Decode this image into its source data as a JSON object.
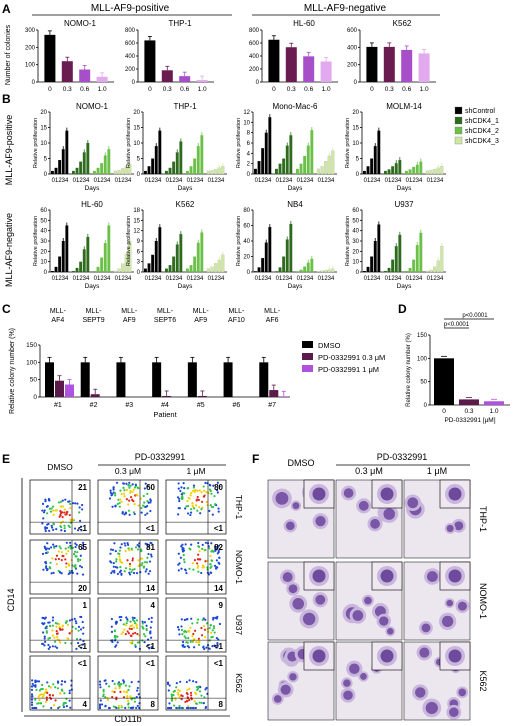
{
  "panel_letters": [
    "A",
    "B",
    "C",
    "D",
    "E",
    "F"
  ],
  "panel_a": {
    "group_labels": [
      "MLL-AF9-positive",
      "MLL-AF9-negative"
    ],
    "ylabel": "Number of colonies",
    "x_ticks": [
      "0",
      "0.3",
      "0.6",
      "1.0"
    ],
    "charts": [
      {
        "title": "NOMO-1",
        "ylim": [
          0,
          300
        ],
        "yticks": [
          "0",
          "100",
          "200",
          "300"
        ],
        "values": [
          272,
          120,
          72,
          30
        ],
        "colors": [
          "#000000",
          "#6a1b4f",
          "#a64fc9",
          "#e2a9ef"
        ]
      },
      {
        "title": "THP-1",
        "ylim": [
          0,
          800
        ],
        "yticks": [
          "0",
          "200",
          "400",
          "600",
          "800"
        ],
        "values": [
          640,
          180,
          90,
          30
        ],
        "colors": [
          "#000000",
          "#6a1b4f",
          "#a64fc9",
          "#e2a9ef"
        ]
      },
      {
        "title": "HL-60",
        "ylim": [
          0,
          800
        ],
        "yticks": [
          "0",
          "200",
          "400",
          "600",
          "800"
        ],
        "values": [
          650,
          535,
          395,
          315
        ],
        "colors": [
          "#000000",
          "#6a1b4f",
          "#a64fc9",
          "#e2a9ef"
        ]
      },
      {
        "title": "K562",
        "ylim": [
          0,
          600
        ],
        "yticks": [
          "0",
          "200",
          "400",
          "600"
        ],
        "values": [
          405,
          405,
          370,
          330
        ],
        "colors": [
          "#000000",
          "#6a1b4f",
          "#a64fc9",
          "#e2a9ef"
        ]
      }
    ]
  },
  "panel_b": {
    "row_labels": [
      "MLL-AF9-positive",
      "MLL-AF9-negative"
    ],
    "ylabel": "Relative proliferation",
    "xlabel": "Days",
    "day_ticks": "01234",
    "legend": [
      {
        "label": "shControl",
        "color": "#000000"
      },
      {
        "label": "shCDK4_1",
        "color": "#2e6b1f"
      },
      {
        "label": "shCDK4_2",
        "color": "#6cc04a"
      },
      {
        "label": "shCDK4_3",
        "color": "#cfe6a4"
      }
    ],
    "charts": [
      {
        "title": "NOMO-1",
        "ymax": 20,
        "yticks": [
          "0",
          "5",
          "10",
          "15",
          "20"
        ],
        "series": [
          [
            1,
            2,
            4.5,
            8,
            14
          ],
          [
            1,
            2,
            4,
            7,
            10
          ],
          [
            1,
            2,
            3.5,
            6,
            8
          ],
          [
            1,
            1.2,
            1.8,
            2.4,
            3.2
          ]
        ]
      },
      {
        "title": "THP-1",
        "ymax": 20,
        "yticks": [
          "0",
          "5",
          "10",
          "15",
          "20"
        ],
        "series": [
          [
            1,
            2.5,
            5,
            9,
            14
          ],
          [
            1,
            2,
            4,
            7,
            10.5
          ],
          [
            1,
            2.5,
            5,
            9,
            12.5
          ],
          [
            1,
            1.2,
            1.5,
            2,
            2.5
          ]
        ]
      },
      {
        "title": "Mono-Mac-6",
        "ymax": 12,
        "yticks": [
          "0",
          "2",
          "4",
          "6",
          "8",
          "10",
          "12"
        ],
        "series": [
          [
            1,
            2.5,
            5,
            8,
            11
          ],
          [
            1,
            2,
            3,
            5.5,
            7.5
          ],
          [
            1,
            2,
            3.5,
            5.5,
            8.5
          ],
          [
            1,
            1.5,
            2.5,
            3.5,
            4.5
          ]
        ]
      },
      {
        "title": "MOLM-14",
        "ymax": 20,
        "yticks": [
          "0",
          "5",
          "10",
          "15",
          "20"
        ],
        "series": [
          [
            1,
            2.5,
            5,
            9,
            14
          ],
          [
            1,
            1.5,
            2.5,
            3.5,
            4.5
          ],
          [
            1,
            1.5,
            2.3,
            3,
            4
          ],
          [
            1,
            1.3,
            1.6,
            2,
            2.5
          ]
        ]
      },
      {
        "title": "HL-60",
        "ymax": 60,
        "yticks": [
          "0",
          "10",
          "20",
          "30",
          "40",
          "50",
          "60"
        ],
        "series": [
          [
            1,
            5,
            15,
            30,
            45
          ],
          [
            1,
            4,
            10,
            22,
            34
          ],
          [
            1,
            5,
            14,
            28,
            45
          ],
          [
            1,
            3,
            8,
            17,
            30
          ]
        ]
      },
      {
        "title": "K562",
        "ymax": 18,
        "yticks": [
          "0",
          "3",
          "6",
          "9",
          "12",
          "15",
          "18"
        ],
        "series": [
          [
            1,
            2.5,
            5,
            9,
            13
          ],
          [
            1,
            2,
            4.5,
            8,
            11
          ],
          [
            1,
            2,
            4.5,
            8.5,
            11.5
          ],
          [
            1,
            1.5,
            2.5,
            3.5,
            5
          ]
        ]
      },
      {
        "title": "NB4",
        "ymax": 80,
        "yticks": [
          "0",
          "20",
          "40",
          "60",
          "80"
        ],
        "series": [
          [
            1,
            6,
            18,
            38,
            58
          ],
          [
            1,
            6,
            20,
            42,
            62
          ],
          [
            1,
            3,
            7,
            12,
            17
          ],
          [
            1,
            1.5,
            2.5,
            3,
            4
          ]
        ]
      },
      {
        "title": "U937",
        "ymax": 60,
        "yticks": [
          "0",
          "10",
          "20",
          "30",
          "40",
          "50",
          "60"
        ],
        "series": [
          [
            1,
            5,
            15,
            30,
            46
          ],
          [
            1,
            4,
            12,
            25,
            36
          ],
          [
            1,
            4,
            12,
            26,
            38
          ],
          [
            1,
            2,
            5,
            11,
            25
          ]
        ]
      }
    ]
  },
  "panel_c": {
    "ylabel": "Relative colony number (%)",
    "xlabel": "Patient",
    "ylim": [
      0,
      150
    ],
    "yticks": [
      "0",
      "50",
      "100",
      "150"
    ],
    "patients": [
      "#1",
      "#2",
      "#3",
      "#4",
      "#5",
      "#6",
      "#7"
    ],
    "subtypes": [
      "MLL-AF4",
      "MLL-SEPT9",
      "MLL-AF9",
      "MLL-SEPT6",
      "MLL-AF9",
      "MLL-AF10",
      "MLL-AF6"
    ],
    "legend": [
      {
        "label": "DMSO",
        "color": "#000000"
      },
      {
        "label": "PD-0332991 0.3 μM",
        "color": "#5a1a4a"
      },
      {
        "label": "PD-0332991 1 μM",
        "color": "#b052e0"
      }
    ],
    "series": [
      [
        100,
        100,
        100,
        100,
        100,
        100,
        100
      ],
      [
        47,
        8,
        0,
        3,
        3,
        0,
        20
      ],
      [
        36,
        0,
        0,
        0,
        0,
        0,
        2
      ]
    ]
  },
  "panel_d": {
    "ylabel": "Relative colony number (%)",
    "xlabel": "PD-0332991 [μM]",
    "ylim": [
      0,
      150
    ],
    "yticks": [
      "0",
      "50",
      "100",
      "150"
    ],
    "categories": [
      "0",
      "0.3",
      "1.0"
    ],
    "values": [
      100,
      12,
      8
    ],
    "colors": [
      "#000000",
      "#5a1a4a",
      "#b052e0"
    ],
    "pvalues": [
      "p<0.0001",
      "p<0.0001"
    ]
  },
  "panel_e": {
    "col_labels": [
      "DMSO",
      "0.3 μM",
      "1 μM"
    ],
    "header": "PD-0332991",
    "row_labels": [
      "THP-1",
      "NOMO-1",
      "U937",
      "K562"
    ],
    "ylabel": "CD14",
    "xlabel": "CD11b",
    "quadrants": [
      [
        [
          "21",
          "<1"
        ],
        [
          "60",
          "<1"
        ],
        [
          "80",
          "<1"
        ]
      ],
      [
        [
          "65",
          "20"
        ],
        [
          "81",
          "14"
        ],
        [
          "82",
          "14"
        ]
      ],
      [
        [
          "1",
          "<1"
        ],
        [
          "4",
          "<1"
        ],
        [
          "9",
          "<1"
        ]
      ],
      [
        [
          "<1",
          "4"
        ],
        [
          "<1",
          "8"
        ],
        [
          "<1",
          "8"
        ]
      ]
    ]
  },
  "panel_f": {
    "col_labels": [
      "DMSO",
      "0.3 μM",
      "1 μM"
    ],
    "header": "PD-0332991",
    "row_labels": [
      "THP-1",
      "NOMO-1",
      "K562"
    ]
  }
}
